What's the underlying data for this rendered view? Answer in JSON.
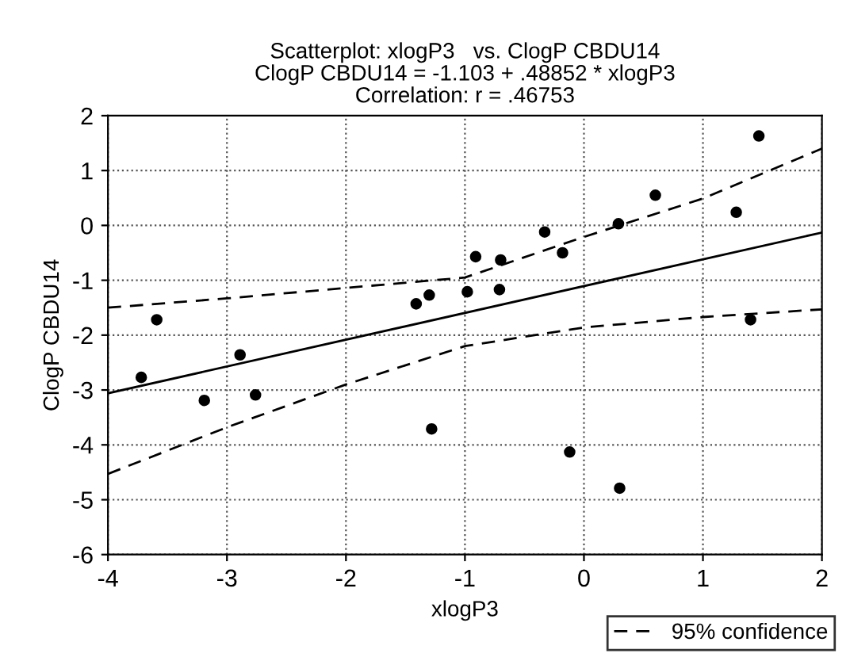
{
  "chart_data": {
    "type": "scatter",
    "title": "Scatterplot: xlogP3   vs. ClogP CBDU14",
    "subtitle": "ClogP CBDU14 = -1.103 + .48852 * xlogP3\nCorrelation: r = .46753",
    "xlabel": "xlogP3",
    "ylabel": "ClogP CBDU14",
    "xlim": [
      -4,
      2
    ],
    "xticks": [
      -4,
      -3,
      -2,
      -1,
      0,
      1,
      2
    ],
    "ylim": [
      -6,
      2
    ],
    "yticks": [
      -6,
      -5,
      -4,
      -3,
      -2,
      -1,
      0,
      1,
      2
    ],
    "grid": true,
    "legend": "bottom right",
    "series": [
      {
        "color": "#000000",
        "marker": "circle",
        "x": [
          -3.72,
          -3.59,
          -3.19,
          -2.89,
          -2.76,
          -1.41,
          -1.3,
          -1.28,
          -0.91,
          -0.98,
          -0.7,
          -0.71,
          -0.33,
          -0.18,
          -0.12,
          0.29,
          0.3,
          0.6,
          1.28,
          1.4,
          1.47
        ],
        "values": [
          -2.77,
          -1.72,
          -3.19,
          -2.36,
          -3.09,
          -1.43,
          -1.27,
          -3.71,
          -0.57,
          -1.21,
          -0.63,
          -1.17,
          -0.12,
          -0.5,
          -4.13,
          0.03,
          -4.79,
          0.55,
          0.24,
          -1.72,
          1.63
        ]
      },
      {
        "type": "line",
        "color": "#000000",
        "line_style": "solid",
        "x": [
          -4,
          2
        ],
        "values": [
          -3.06,
          -0.13
        ]
      },
      {
        "type": "line",
        "name": "95% confidence",
        "color": "#000000",
        "line_style": "dashed",
        "x": [
          -4,
          -3,
          -2,
          -1,
          0,
          1,
          2
        ],
        "values": [
          -1.5,
          -1.33,
          -1.14,
          -0.95,
          -0.21,
          0.49,
          1.4
        ]
      },
      {
        "type": "line",
        "color": "#000000",
        "line_style": "dashed",
        "x": [
          -4,
          -3,
          -2,
          -1,
          0,
          1,
          2
        ],
        "values": [
          -4.53,
          -3.68,
          -2.9,
          -2.2,
          -1.86,
          -1.67,
          -1.53
        ]
      }
    ]
  }
}
